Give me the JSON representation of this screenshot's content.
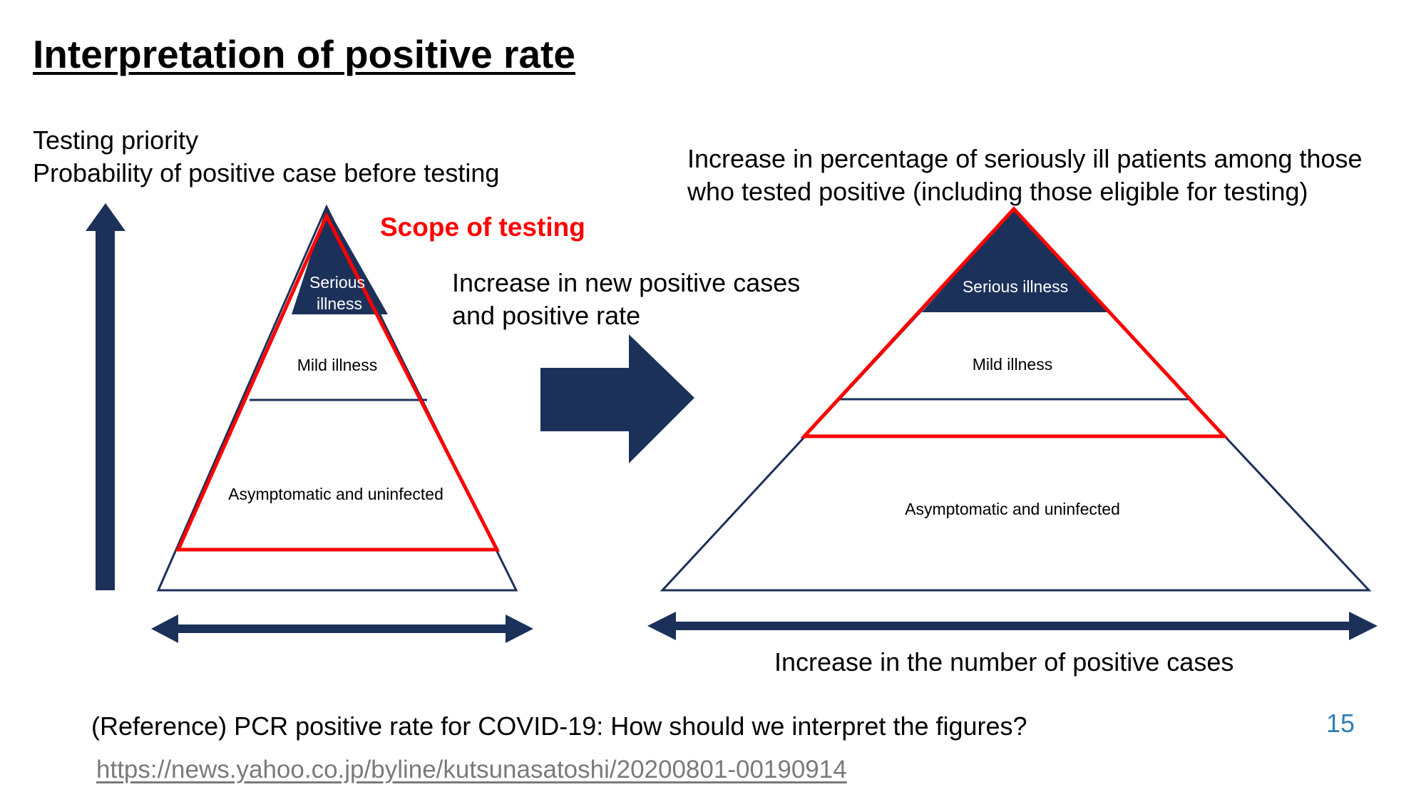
{
  "title": "Interpretation of positive rate",
  "left": {
    "axis_label_line1": "Testing priority",
    "axis_label_line2": "Probability of positive case before testing",
    "scope_label": "Scope of testing",
    "tier_serious_line1": "Serious",
    "tier_serious_line2": "illness",
    "tier_mild": "Mild illness",
    "tier_asymptomatic": "Asymptomatic and uninfected"
  },
  "middle": {
    "arrow_label_line1": "Increase in new positive cases",
    "arrow_label_line2": "and positive rate"
  },
  "right": {
    "header_line1": "Increase in percentage of seriously ill patients among those",
    "header_line2": "who tested positive (including  those eligible for testing)",
    "tier_serious": "Serious illness",
    "tier_mild": "Mild illness",
    "tier_asymptomatic": "Asymptomatic and uninfected",
    "bottom_label": "Increase in the number of positive cases"
  },
  "footer": {
    "reference": "(Reference) PCR positive rate for COVID-19: How should we interpret the figures?",
    "url": "https://news.yahoo.co.jp/byline/kutsunasatoshi/20200801-00190914",
    "page_number": "15"
  },
  "colors": {
    "navy": "#1c3159",
    "red": "#ff0000",
    "link_gray": "#7a7a7a",
    "page_number_blue": "#2f7fb5"
  }
}
